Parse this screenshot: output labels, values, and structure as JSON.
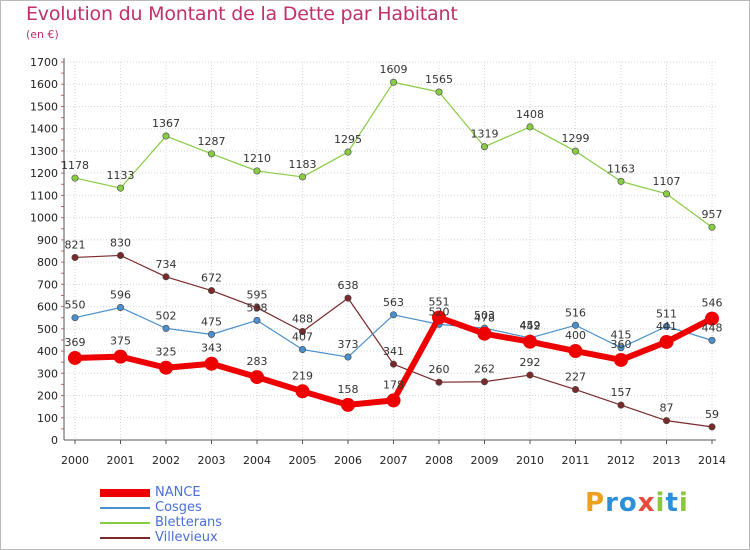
{
  "title": "Evolution du Montant de la Dette par Habitant",
  "subtitle": "(en €)",
  "logo": {
    "letters": [
      "P",
      "r",
      "o",
      "x",
      "i",
      "t",
      "i"
    ],
    "colors": [
      "#f0a020",
      "#2d8fd6",
      "#2d8fd6",
      "#e84c3d",
      "#8cc63f",
      "#2d8fd6",
      "#8cc63f"
    ]
  },
  "chart_data": {
    "type": "line",
    "x": [
      "2000",
      "2001",
      "2002",
      "2003",
      "2004",
      "2005",
      "2006",
      "2007",
      "2008",
      "2009",
      "2010",
      "2011",
      "2012",
      "2013",
      "2014"
    ],
    "ylim": [
      0,
      1700
    ],
    "yticks": [
      0,
      100,
      200,
      300,
      400,
      500,
      600,
      700,
      800,
      900,
      1000,
      1100,
      1200,
      1300,
      1400,
      1500,
      1600,
      1700
    ],
    "grid": true,
    "legend_position": "bottom-left",
    "series": [
      {
        "name": "NANCE",
        "color": "#ee0000",
        "values": [
          369,
          375,
          325,
          343,
          283,
          219,
          158,
          178,
          551,
          478,
          442,
          400,
          360,
          441,
          546
        ],
        "labels": [
          "369",
          "375",
          "325",
          "343",
          "283",
          "219",
          "158",
          "178",
          "551",
          "478",
          "442",
          "400",
          "360",
          "441",
          "546"
        ]
      },
      {
        "name": "Cosges",
        "color": "#4a90cc",
        "values": [
          550,
          596,
          502,
          475,
          538,
          407,
          373,
          563,
          520,
          503,
          459,
          516,
          415,
          511,
          448
        ],
        "labels": [
          "550",
          "596",
          "502",
          "475",
          "538",
          "407",
          "373",
          "563",
          "520",
          "503",
          "459",
          "516",
          "415",
          "511",
          "448"
        ]
      },
      {
        "name": "Bletterans",
        "color": "#88cc44",
        "values": [
          1178,
          1133,
          1367,
          1287,
          1210,
          1183,
          1295,
          1609,
          1565,
          1319,
          1408,
          1299,
          1163,
          1107,
          957
        ],
        "labels": [
          "1178",
          "1133",
          "1367",
          "1287",
          "1210",
          "1183",
          "1295",
          "1609",
          "1565",
          "1319",
          "1408",
          "1299",
          "1163",
          "1107",
          "957"
        ]
      },
      {
        "name": "Villevieux",
        "color": "#7a2a2a",
        "values": [
          821,
          830,
          734,
          672,
          595,
          488,
          638,
          341,
          260,
          262,
          292,
          227,
          157,
          87,
          59
        ],
        "labels": [
          "821",
          "830",
          "734",
          "672",
          "595",
          "488",
          "638",
          "341",
          "260",
          "262",
          "292",
          "227",
          "157",
          "87",
          "59"
        ]
      }
    ]
  }
}
